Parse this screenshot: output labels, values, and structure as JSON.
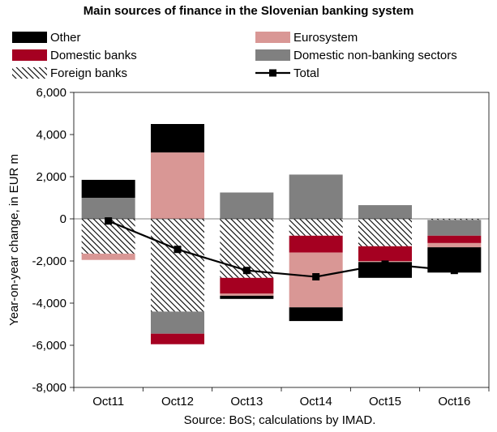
{
  "title": "Main sources of finance in the Slovenian banking system",
  "source": "Source: BoS; calculations by IMAD.",
  "colors": {
    "Other": "#000000",
    "Eurosystem": "#d99795",
    "Domestic banks": "#a50021",
    "Domestic non-banking sectors": "#808080",
    "Foreign banks": "hatch",
    "Total": "#000000"
  },
  "chart_data": {
    "type": "bar",
    "stacked": true,
    "categories": [
      "Oct11",
      "Oct12",
      "Oct13",
      "Oct14",
      "Oct15",
      "Oct16"
    ],
    "ylabel": "Year-on-year change, in EUR m",
    "xlabel": "",
    "ylim": [
      -8000,
      6000
    ],
    "yticks": [
      6000,
      4000,
      2000,
      0,
      -2000,
      -4000,
      -6000,
      -8000
    ],
    "ytick_labels": [
      "6,000",
      "4,000",
      "2,000",
      "0",
      "-2,000",
      "-4,000",
      "-6,000",
      "-8,000"
    ],
    "grid": false,
    "legend": "top",
    "series": [
      {
        "name": "Other",
        "kind": "bar",
        "values": [
          850,
          1350,
          -150,
          -650,
          -750,
          -1200
        ]
      },
      {
        "name": "Eurosystem",
        "kind": "bar",
        "values": [
          -300,
          3150,
          -100,
          -2600,
          -50,
          -200
        ]
      },
      {
        "name": "Domestic banks",
        "kind": "bar",
        "values": [
          0,
          -500,
          -750,
          -800,
          -700,
          -350
        ]
      },
      {
        "name": "Domestic non-banking sectors",
        "kind": "bar",
        "values": [
          1000,
          -1050,
          1250,
          2100,
          650,
          -750
        ]
      },
      {
        "name": "Foreign banks",
        "kind": "bar",
        "values": [
          -1650,
          -4400,
          -2800,
          -800,
          -1300,
          -50
        ]
      },
      {
        "name": "Total",
        "kind": "line",
        "values": [
          -100,
          -1450,
          -2450,
          -2750,
          -2150,
          -2450
        ]
      }
    ]
  }
}
